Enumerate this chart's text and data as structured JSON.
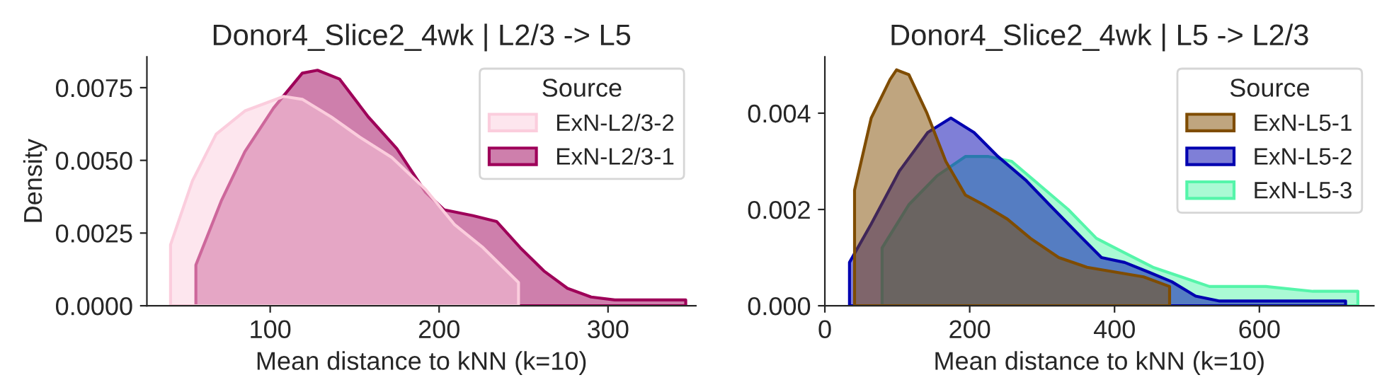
{
  "chart_data": [
    {
      "type": "area",
      "title": "Donor4_Slice2_4wk | L2/3 -> L5",
      "xlabel": "Mean distance to kNN (k=10)",
      "ylabel": "Density",
      "legend_title": "Source",
      "legend": "top right",
      "grid": false,
      "xlim": [
        27,
        352
      ],
      "ylim": [
        0,
        0.00856
      ],
      "xticks": [
        100,
        200,
        300
      ],
      "yticks": [
        {
          "value": 0,
          "label": "0.0000"
        },
        {
          "value": 0.0025,
          "label": "0.0025"
        },
        {
          "value": 0.005,
          "label": "0.0050"
        },
        {
          "value": 0.0075,
          "label": "0.0075"
        }
      ],
      "series": [
        {
          "name": "ExN-L2/3-2",
          "color": "#fbcddd",
          "x": [
            41,
            54,
            68,
            85,
            108,
            119,
            136,
            153,
            172,
            192,
            209,
            226,
            240,
            247
          ],
          "values": [
            0.0021,
            0.0043,
            0.0059,
            0.0067,
            0.0072,
            0.0071,
            0.0065,
            0.0058,
            0.0051,
            0.004,
            0.0028,
            0.002,
            0.0012,
            0.0008
          ]
        },
        {
          "name": "ExN-L2/3-1",
          "color": "#9e0059",
          "x": [
            56,
            71,
            85,
            102,
            119,
            128,
            141,
            158,
            175,
            192,
            203,
            220,
            234,
            248,
            262,
            276,
            290,
            304,
            332,
            346
          ],
          "values": [
            0.0014,
            0.0036,
            0.0053,
            0.0068,
            0.008,
            0.0081,
            0.0078,
            0.0065,
            0.0054,
            0.0039,
            0.0033,
            0.0031,
            0.0029,
            0.002,
            0.0012,
            0.0006,
            0.0003,
            0.0002,
            0.0002,
            0.0002
          ]
        }
      ]
    },
    {
      "type": "area",
      "title": "Donor4_Slice2_4wk | L5 -> L2/3",
      "xlabel": "Mean distance to kNN (k=10)",
      "legend_title": "Source",
      "legend": "top right",
      "grid": false,
      "xlim": [
        0,
        758
      ],
      "ylim": [
        0,
        0.00517
      ],
      "xticks": [
        0,
        200,
        400,
        600
      ],
      "yticks": [
        {
          "value": 0,
          "label": "0.000"
        },
        {
          "value": 0.002,
          "label": "0.002"
        },
        {
          "value": 0.004,
          "label": "0.004"
        }
      ],
      "series": [
        {
          "name": "ExN-L5-1",
          "color": "#7f4c00",
          "x": [
            41,
            64,
            90,
            99,
            116,
            141,
            167,
            194,
            219,
            252,
            284,
            323,
            362,
            401,
            440,
            476
          ],
          "values": [
            0.0024,
            0.0039,
            0.0047,
            0.0049,
            0.0048,
            0.004,
            0.003,
            0.0023,
            0.0021,
            0.0018,
            0.0014,
            0.001,
            0.0008,
            0.0007,
            0.0006,
            0.0004
          ]
        },
        {
          "name": "ExN-L5-2",
          "color": "#0000b0",
          "x": [
            34,
            64,
            103,
            142,
            174,
            206,
            239,
            278,
            310,
            349,
            382,
            414,
            447,
            479,
            512,
            544,
            609,
            674,
            719
          ],
          "values": [
            0.0009,
            0.0017,
            0.0028,
            0.0036,
            0.0039,
            0.0036,
            0.0031,
            0.0026,
            0.0021,
            0.0015,
            0.001,
            0.0009,
            0.0007,
            0.0005,
            0.0002,
            0.0001,
            0.0001,
            0.0001,
            0.0001
          ]
        },
        {
          "name": "ExN-L5-3",
          "color": "#55f5aa",
          "x": [
            79,
            116,
            155,
            194,
            226,
            258,
            297,
            336,
            375,
            414,
            453,
            492,
            531,
            570,
            609,
            674,
            736
          ],
          "values": [
            0.0012,
            0.0021,
            0.0027,
            0.0031,
            0.0031,
            0.003,
            0.0025,
            0.002,
            0.0014,
            0.0011,
            0.0008,
            0.0006,
            0.0004,
            0.0004,
            0.0004,
            0.0003,
            0.0003
          ]
        }
      ]
    }
  ]
}
